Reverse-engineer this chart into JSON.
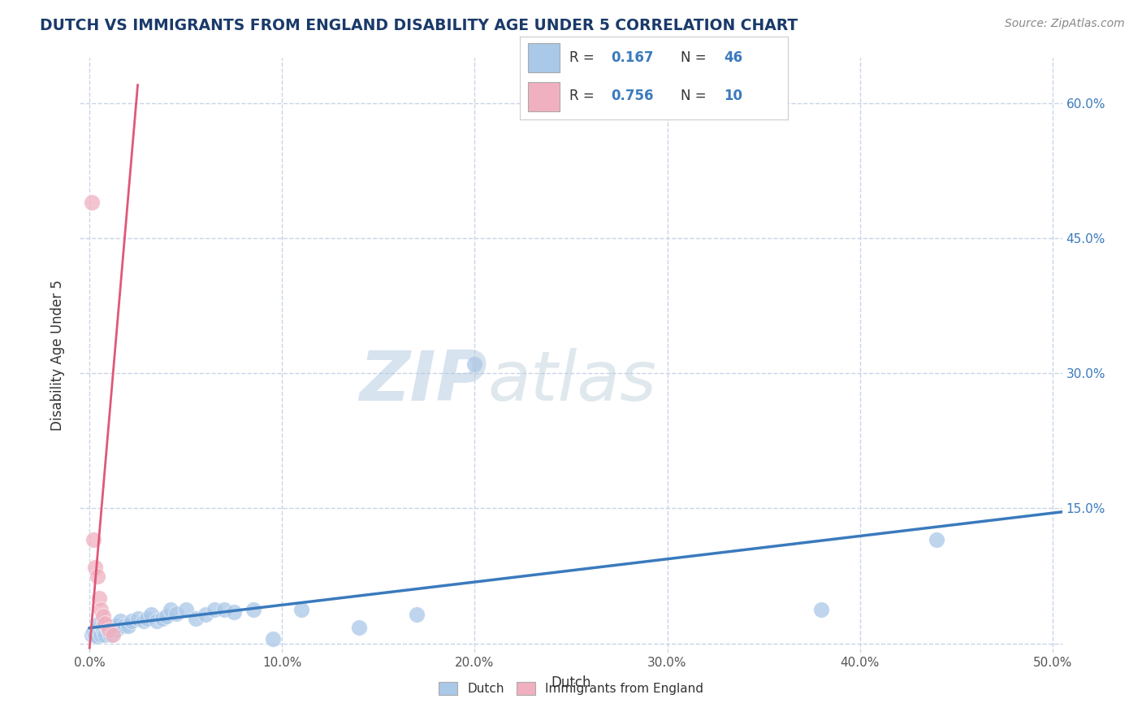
{
  "title": "DUTCH VS IMMIGRANTS FROM ENGLAND DISABILITY AGE UNDER 5 CORRELATION CHART",
  "source": "Source: ZipAtlas.com",
  "xlabel": "Dutch",
  "ylabel": "Disability Age Under 5",
  "xlim": [
    -0.005,
    0.505
  ],
  "ylim": [
    -0.01,
    0.65
  ],
  "xticks": [
    0.0,
    0.1,
    0.2,
    0.3,
    0.4,
    0.5
  ],
  "xticklabels": [
    "0.0%",
    "10.0%",
    "20.0%",
    "30.0%",
    "40.0%",
    "50.0%"
  ],
  "yticks": [
    0.0,
    0.15,
    0.3,
    0.45,
    0.6
  ],
  "yticklabels_right": [
    "",
    "15.0%",
    "30.0%",
    "45.0%",
    "60.0%"
  ],
  "dutch_color": "#aac8e8",
  "england_color": "#f0b0c0",
  "dutch_line_color": "#3a7abd",
  "england_line_color": "#e05878",
  "background_color": "#ffffff",
  "grid_color": "#c8d4e8",
  "dutch_R": 0.167,
  "dutch_N": 46,
  "england_R": 0.756,
  "england_N": 10,
  "dutch_x": [
    0.001,
    0.002,
    0.003,
    0.004,
    0.004,
    0.005,
    0.005,
    0.006,
    0.007,
    0.007,
    0.008,
    0.009,
    0.01,
    0.01,
    0.011,
    0.012,
    0.013,
    0.014,
    0.015,
    0.016,
    0.018,
    0.02,
    0.022,
    0.025,
    0.028,
    0.03,
    0.032,
    0.035,
    0.038,
    0.04,
    0.042,
    0.045,
    0.05,
    0.055,
    0.06,
    0.065,
    0.07,
    0.075,
    0.085,
    0.095,
    0.11,
    0.14,
    0.17,
    0.2,
    0.38,
    0.44
  ],
  "dutch_y": [
    0.01,
    0.012,
    0.01,
    0.015,
    0.008,
    0.015,
    0.022,
    0.01,
    0.015,
    0.02,
    0.01,
    0.018,
    0.015,
    0.02,
    0.01,
    0.015,
    0.02,
    0.015,
    0.02,
    0.025,
    0.02,
    0.02,
    0.025,
    0.028,
    0.025,
    0.028,
    0.032,
    0.025,
    0.028,
    0.03,
    0.038,
    0.033,
    0.038,
    0.028,
    0.032,
    0.038,
    0.038,
    0.035,
    0.038,
    0.005,
    0.038,
    0.018,
    0.032,
    0.31,
    0.038,
    0.115
  ],
  "england_x": [
    0.001,
    0.002,
    0.003,
    0.004,
    0.005,
    0.006,
    0.007,
    0.008,
    0.01,
    0.012
  ],
  "england_y": [
    0.49,
    0.115,
    0.085,
    0.075,
    0.05,
    0.038,
    0.03,
    0.022,
    0.015,
    0.01
  ],
  "eng_line_x0": 0.0,
  "eng_line_y0": -0.005,
  "eng_line_x1": 0.025,
  "eng_line_y1": 0.62,
  "dutch_line_x0": 0.0,
  "dutch_line_x1": 0.505
}
